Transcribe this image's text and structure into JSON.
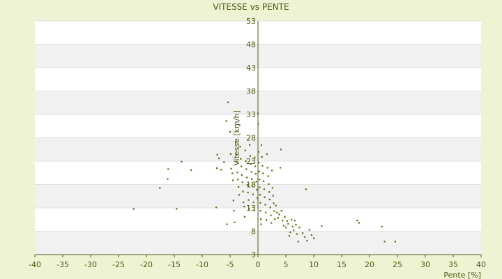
{
  "chart_data": {
    "type": "scatter",
    "title": "VITESSE vs PENTE",
    "xlabel": "Pente [%]",
    "ylabel": "Vitesse [km/h]",
    "xlim": [
      -40,
      40
    ],
    "ylim": [
      3,
      53
    ],
    "x_ticks": [
      -40,
      -35,
      -30,
      -25,
      -20,
      -15,
      -10,
      -5,
      0,
      5,
      10,
      15,
      20,
      25,
      30,
      35,
      40
    ],
    "y_ticks": [
      3,
      8,
      13,
      18,
      23,
      28,
      33,
      38,
      43,
      48,
      53
    ],
    "grid": true,
    "legend": "none",
    "colors": {
      "background": "#eef3d4",
      "plot_bg": "#ffffff",
      "band": "#f1f1f1",
      "axis": "#4a5a14",
      "point": "#5b6b12"
    },
    "series": [
      {
        "points": [
          [
            -22.3,
            12.8
          ],
          [
            -17.6,
            17.3
          ],
          [
            -16.2,
            19.2
          ],
          [
            -16.1,
            21.3
          ],
          [
            -14.6,
            12.8
          ],
          [
            -13.7,
            22.9
          ],
          [
            -12.0,
            21.1
          ],
          [
            -7.5,
            13.1
          ],
          [
            -7.4,
            21.5
          ],
          [
            -7.3,
            24.4
          ],
          [
            -7.0,
            23.6
          ],
          [
            -6.6,
            21.2
          ],
          [
            -6.1,
            22.8
          ],
          [
            -5.7,
            31.6
          ],
          [
            -5.4,
            35.6
          ],
          [
            -5.6,
            9.5
          ],
          [
            -5.0,
            29.3
          ],
          [
            -4.9,
            24.5
          ],
          [
            -4.8,
            21.4
          ],
          [
            -4.6,
            20.4
          ],
          [
            -4.5,
            18.9
          ],
          [
            -4.4,
            14.6
          ],
          [
            -4.3,
            12.4
          ],
          [
            -4.2,
            9.9
          ],
          [
            -4.0,
            27.0
          ],
          [
            -3.9,
            24.3
          ],
          [
            -3.8,
            22.9
          ],
          [
            -3.7,
            20.6
          ],
          [
            -3.6,
            19.1
          ],
          [
            -3.5,
            17.5
          ],
          [
            -3.4,
            15.8
          ],
          [
            -3.3,
            30.7
          ],
          [
            -3.2,
            26.1
          ],
          [
            -3.1,
            23.5
          ],
          [
            -3.0,
            21.9
          ],
          [
            -2.9,
            20.0
          ],
          [
            -2.8,
            18.5
          ],
          [
            -2.7,
            16.5
          ],
          [
            -2.6,
            14.2
          ],
          [
            -2.5,
            13.3
          ],
          [
            -2.4,
            11.1
          ],
          [
            -2.3,
            25.3
          ],
          [
            -2.2,
            23.0
          ],
          [
            -2.1,
            21.3
          ],
          [
            -2.0,
            19.5
          ],
          [
            -1.9,
            17.9
          ],
          [
            -1.8,
            16.3
          ],
          [
            -1.7,
            14.7
          ],
          [
            -1.6,
            12.8
          ],
          [
            -1.5,
            26.5
          ],
          [
            -1.4,
            24.1
          ],
          [
            -1.3,
            22.4
          ],
          [
            -1.2,
            20.7
          ],
          [
            -1.1,
            19.2
          ],
          [
            -1.0,
            17.6
          ],
          [
            -0.9,
            15.9
          ],
          [
            -0.8,
            14.2
          ],
          [
            -0.7,
            12.5
          ],
          [
            -0.6,
            23.8
          ],
          [
            -0.5,
            21.9
          ],
          [
            -0.4,
            20.3
          ],
          [
            -0.3,
            18.6
          ],
          [
            -0.2,
            16.9
          ],
          [
            -0.1,
            15.1
          ],
          [
            0.0,
            33.2
          ],
          [
            0.05,
            31.0
          ],
          [
            0.1,
            25.0
          ],
          [
            0.15,
            22.7
          ],
          [
            0.2,
            20.8
          ],
          [
            0.25,
            19.1
          ],
          [
            0.3,
            17.4
          ],
          [
            0.35,
            15.8
          ],
          [
            0.4,
            14.1
          ],
          [
            0.45,
            12.4
          ],
          [
            0.5,
            10.6
          ],
          [
            0.55,
            9.5
          ],
          [
            0.6,
            26.4
          ],
          [
            0.7,
            23.9
          ],
          [
            0.8,
            22.0
          ],
          [
            0.9,
            20.4
          ],
          [
            1.0,
            18.7
          ],
          [
            1.1,
            17.0
          ],
          [
            1.2,
            15.3
          ],
          [
            1.3,
            13.7
          ],
          [
            1.4,
            12.0
          ],
          [
            1.5,
            10.4
          ],
          [
            1.6,
            24.5
          ],
          [
            1.7,
            21.6
          ],
          [
            1.8,
            19.8
          ],
          [
            1.9,
            18.1
          ],
          [
            2.0,
            16.4
          ],
          [
            2.1,
            14.8
          ],
          [
            2.2,
            13.1
          ],
          [
            2.3,
            11.4
          ],
          [
            2.4,
            9.8
          ],
          [
            2.5,
            21.0
          ],
          [
            2.6,
            17.3
          ],
          [
            2.7,
            15.6
          ],
          [
            2.8,
            14.0
          ],
          [
            2.9,
            12.3
          ],
          [
            3.0,
            10.6
          ],
          [
            3.2,
            13.5
          ],
          [
            3.4,
            12.0
          ],
          [
            3.6,
            10.9
          ],
          [
            3.8,
            11.6
          ],
          [
            4.0,
            21.6
          ],
          [
            4.1,
            25.5
          ],
          [
            4.2,
            12.4
          ],
          [
            4.4,
            10.3
          ],
          [
            4.6,
            9.2
          ],
          [
            4.8,
            11.1
          ],
          [
            5.0,
            8.8
          ],
          [
            5.2,
            10.2
          ],
          [
            5.4,
            9.6
          ],
          [
            5.6,
            7.0
          ],
          [
            5.8,
            7.8
          ],
          [
            6.0,
            10.5
          ],
          [
            6.2,
            9.0
          ],
          [
            6.4,
            8.2
          ],
          [
            6.6,
            10.3
          ],
          [
            6.8,
            9.4
          ],
          [
            7.0,
            7.4
          ],
          [
            7.2,
            5.8
          ],
          [
            7.4,
            8.8
          ],
          [
            8.0,
            7.6
          ],
          [
            8.4,
            6.8
          ],
          [
            8.6,
            17.0
          ],
          [
            8.8,
            6.0
          ],
          [
            9.2,
            8.3
          ],
          [
            9.6,
            7.2
          ],
          [
            10.0,
            6.5
          ],
          [
            11.4,
            9.1
          ],
          [
            17.8,
            10.3
          ],
          [
            18.1,
            9.8
          ],
          [
            22.2,
            9.0
          ],
          [
            22.7,
            5.8
          ],
          [
            24.6,
            5.8
          ]
        ]
      }
    ]
  }
}
